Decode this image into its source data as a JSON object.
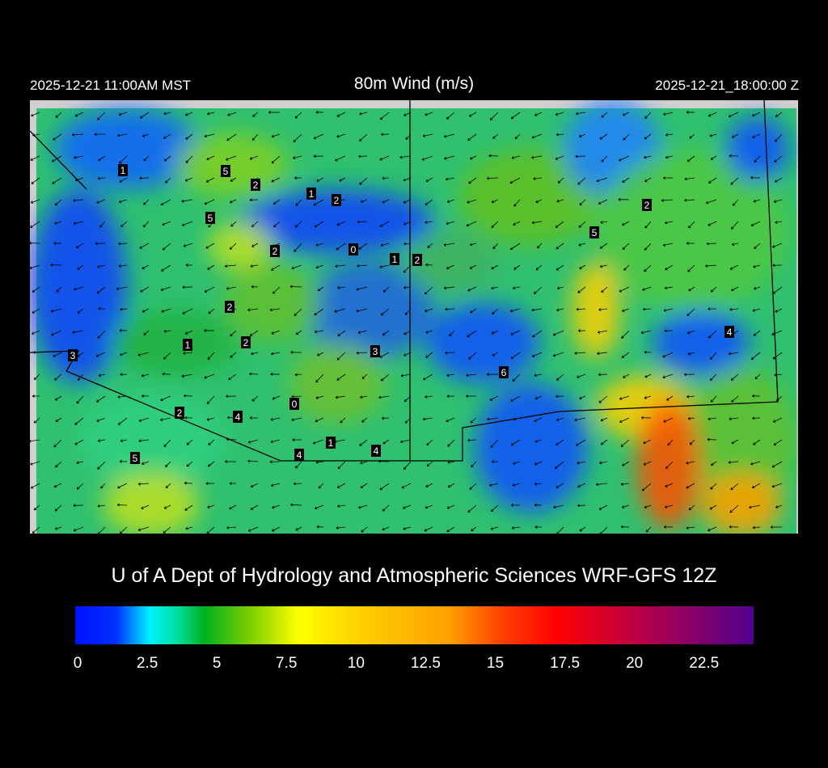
{
  "header": {
    "title": "80m Wind (m/s)",
    "local_time": "2025-12-21 11:00AM MST",
    "utc_time": "2025-12-21_18:00:00 Z"
  },
  "footer": "U of A Dept of Hydrology and Atmospheric Sciences WRF-GFS 12Z",
  "colorbar": {
    "range": [
      0,
      24
    ],
    "unit": "m/s",
    "ticks": [
      "0",
      "2.5",
      "5",
      "7.5",
      "10",
      "12.5",
      "15",
      "17.5",
      "20",
      "22.5"
    ],
    "stops": [
      "#0010ff",
      "#00f0ff",
      "#00b020",
      "#ffff00",
      "#ffa000",
      "#ff0000",
      "#500090"
    ]
  },
  "map": {
    "field": "80m wind speed",
    "station_values": [
      "1",
      "5",
      "2",
      "1",
      "2",
      "5",
      "2",
      "0",
      "1",
      "2",
      "2",
      "5",
      "2",
      "1",
      "2",
      "3",
      "4",
      "3",
      "6",
      "0",
      "2",
      "4",
      "1",
      "4",
      "4",
      "5"
    ]
  }
}
